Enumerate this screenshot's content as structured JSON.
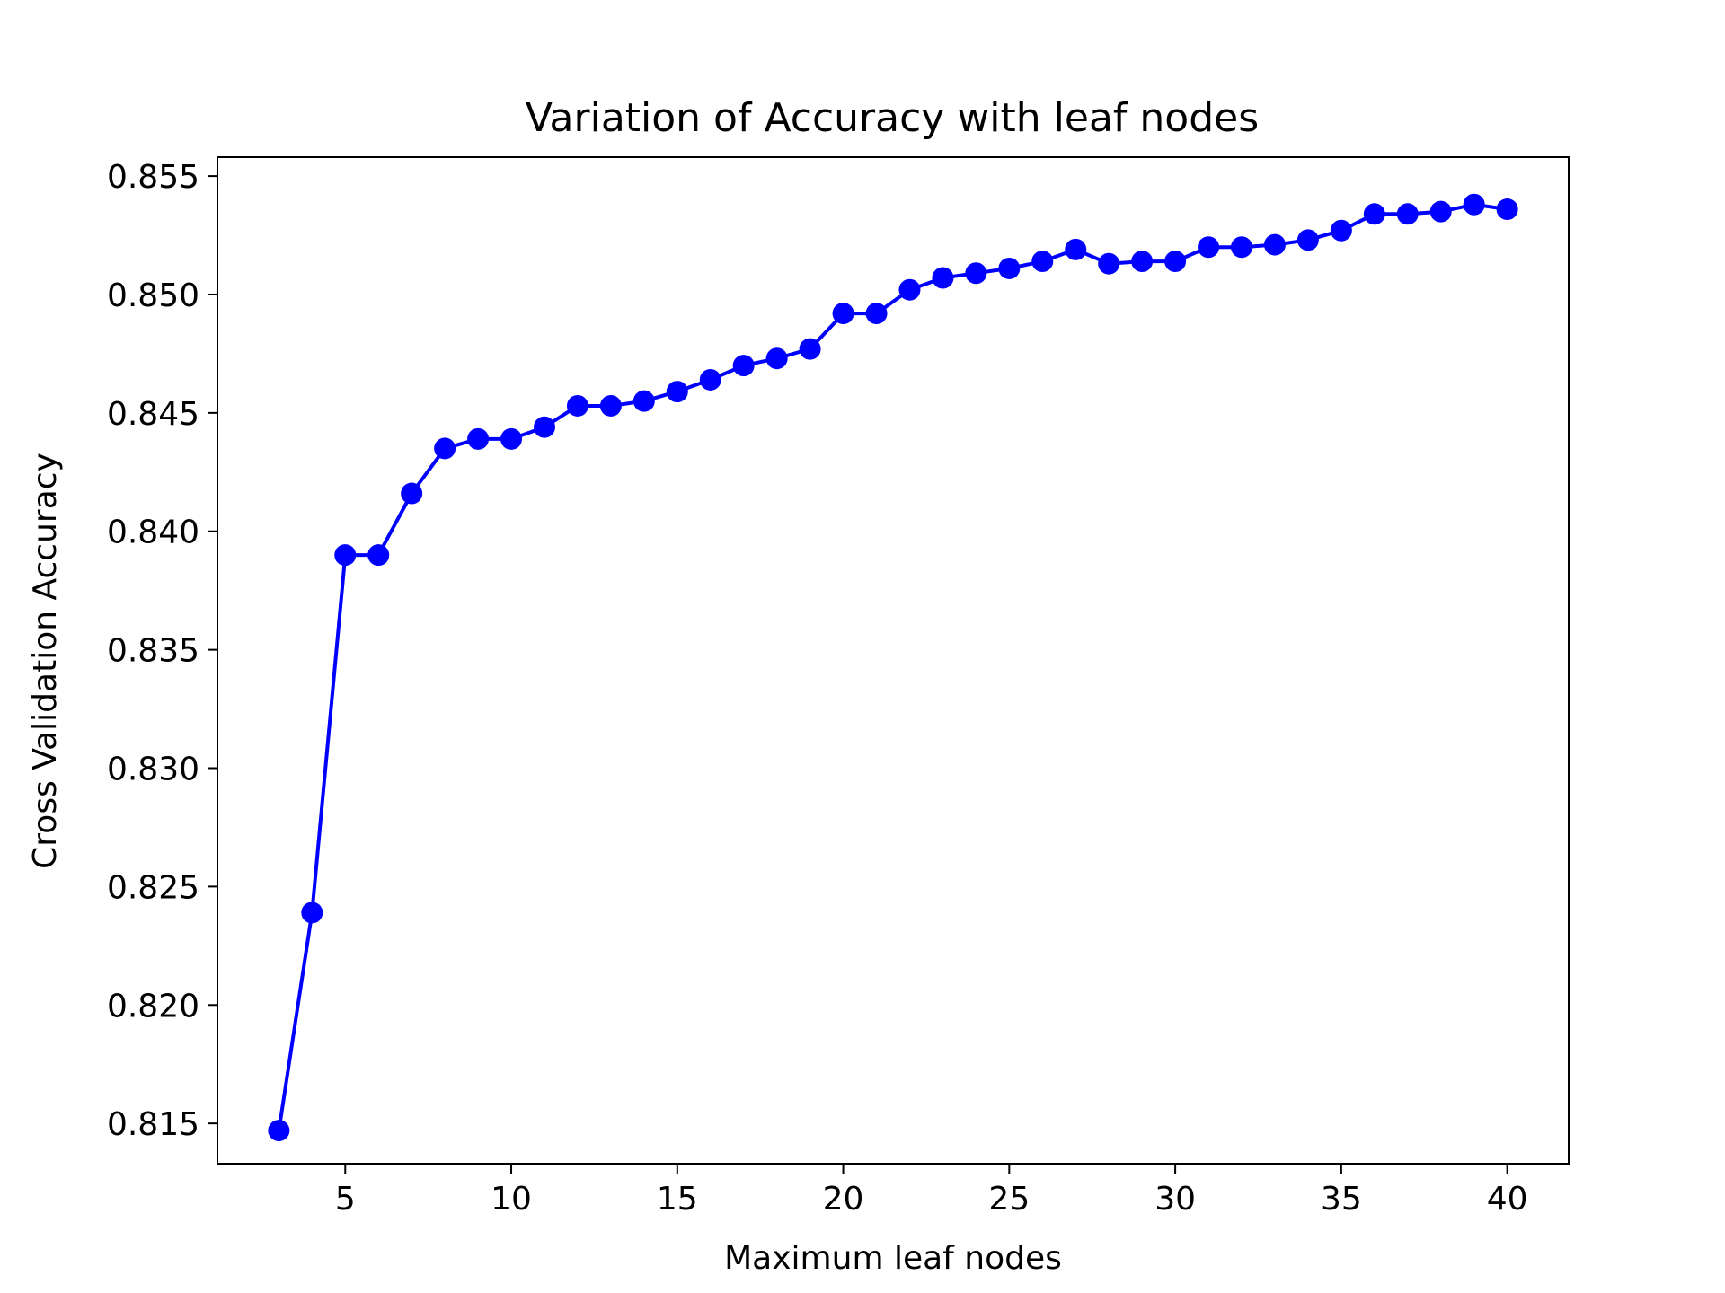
{
  "colors": {
    "series": "#0000ff",
    "axis": "#000000",
    "background": "#ffffff"
  },
  "chart_data": {
    "type": "line",
    "title": "Variation of Accuracy with leaf nodes",
    "xlabel": "Maximum leaf nodes",
    "ylabel": "Cross Validation Accuracy",
    "xlim": [
      1.15,
      41.85
    ],
    "ylim": [
      0.8133,
      0.8558
    ],
    "xticks": [
      5,
      10,
      15,
      20,
      25,
      30,
      35,
      40
    ],
    "xtick_labels": [
      "5",
      "10",
      "15",
      "20",
      "25",
      "30",
      "35",
      "40"
    ],
    "yticks": [
      0.815,
      0.82,
      0.825,
      0.83,
      0.835,
      0.84,
      0.845,
      0.85,
      0.855
    ],
    "ytick_labels": [
      "0.815",
      "0.820",
      "0.825",
      "0.830",
      "0.835",
      "0.840",
      "0.845",
      "0.850",
      "0.855"
    ],
    "grid": false,
    "legend": "none",
    "series": [
      {
        "marker": "circle",
        "x": [
          3,
          4,
          5,
          6,
          7,
          8,
          9,
          10,
          11,
          12,
          13,
          14,
          15,
          16,
          17,
          18,
          19,
          20,
          21,
          22,
          23,
          24,
          25,
          26,
          27,
          28,
          29,
          30,
          31,
          32,
          33,
          34,
          35,
          36,
          37,
          38,
          39,
          40
        ],
        "y": [
          0.8147,
          0.8239,
          0.839,
          0.839,
          0.8416,
          0.8435,
          0.8439,
          0.8439,
          0.8444,
          0.8453,
          0.8453,
          0.8455,
          0.8459,
          0.8464,
          0.847,
          0.8473,
          0.8477,
          0.8492,
          0.8492,
          0.8502,
          0.8507,
          0.8509,
          0.8511,
          0.8514,
          0.8519,
          0.8513,
          0.8514,
          0.8514,
          0.852,
          0.852,
          0.8521,
          0.8523,
          0.8527,
          0.8534,
          0.8534,
          0.8535,
          0.8538,
          0.8536
        ]
      }
    ]
  }
}
